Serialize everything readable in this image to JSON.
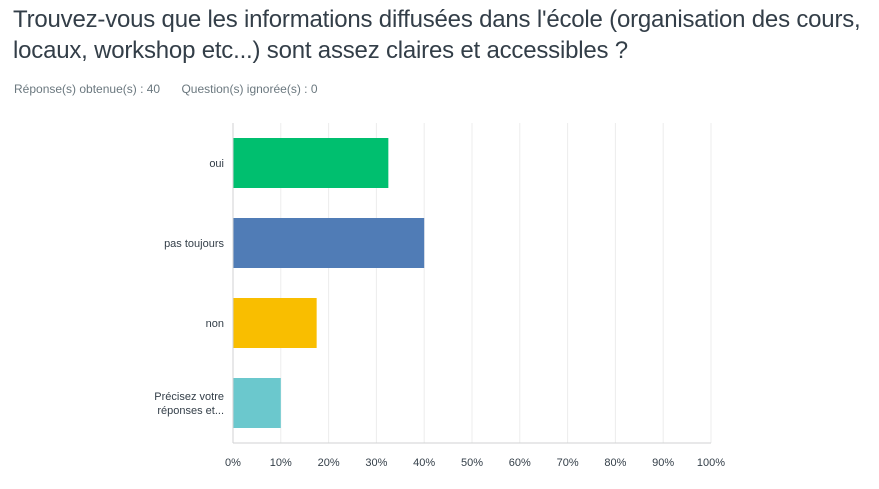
{
  "question": {
    "title": "Trouvez-vous que les informations diffusées dans l'école (organisation des cours, locaux, workshop etc...) sont assez claires et accessibles ?",
    "answered_label": "Réponse(s) obtenue(s) : 40",
    "skipped_label": "Question(s) ignorée(s) : 0"
  },
  "chart_data": {
    "type": "bar",
    "orientation": "horizontal",
    "title": "",
    "xlabel": "",
    "ylabel": "",
    "categories": [
      [
        "oui"
      ],
      [
        "pas toujours"
      ],
      [
        "non"
      ],
      [
        "Précisez votre",
        "réponses et..."
      ]
    ],
    "values": [
      32.5,
      40,
      17.5,
      10
    ],
    "colors": [
      "#00bf6f",
      "#507cb6",
      "#f9be00",
      "#6bc8cd"
    ],
    "xlim": [
      0,
      100
    ],
    "xticks": [
      "0%",
      "10%",
      "20%",
      "30%",
      "40%",
      "50%",
      "60%",
      "70%",
      "80%",
      "90%",
      "100%"
    ],
    "grid": true,
    "unit": "%"
  }
}
